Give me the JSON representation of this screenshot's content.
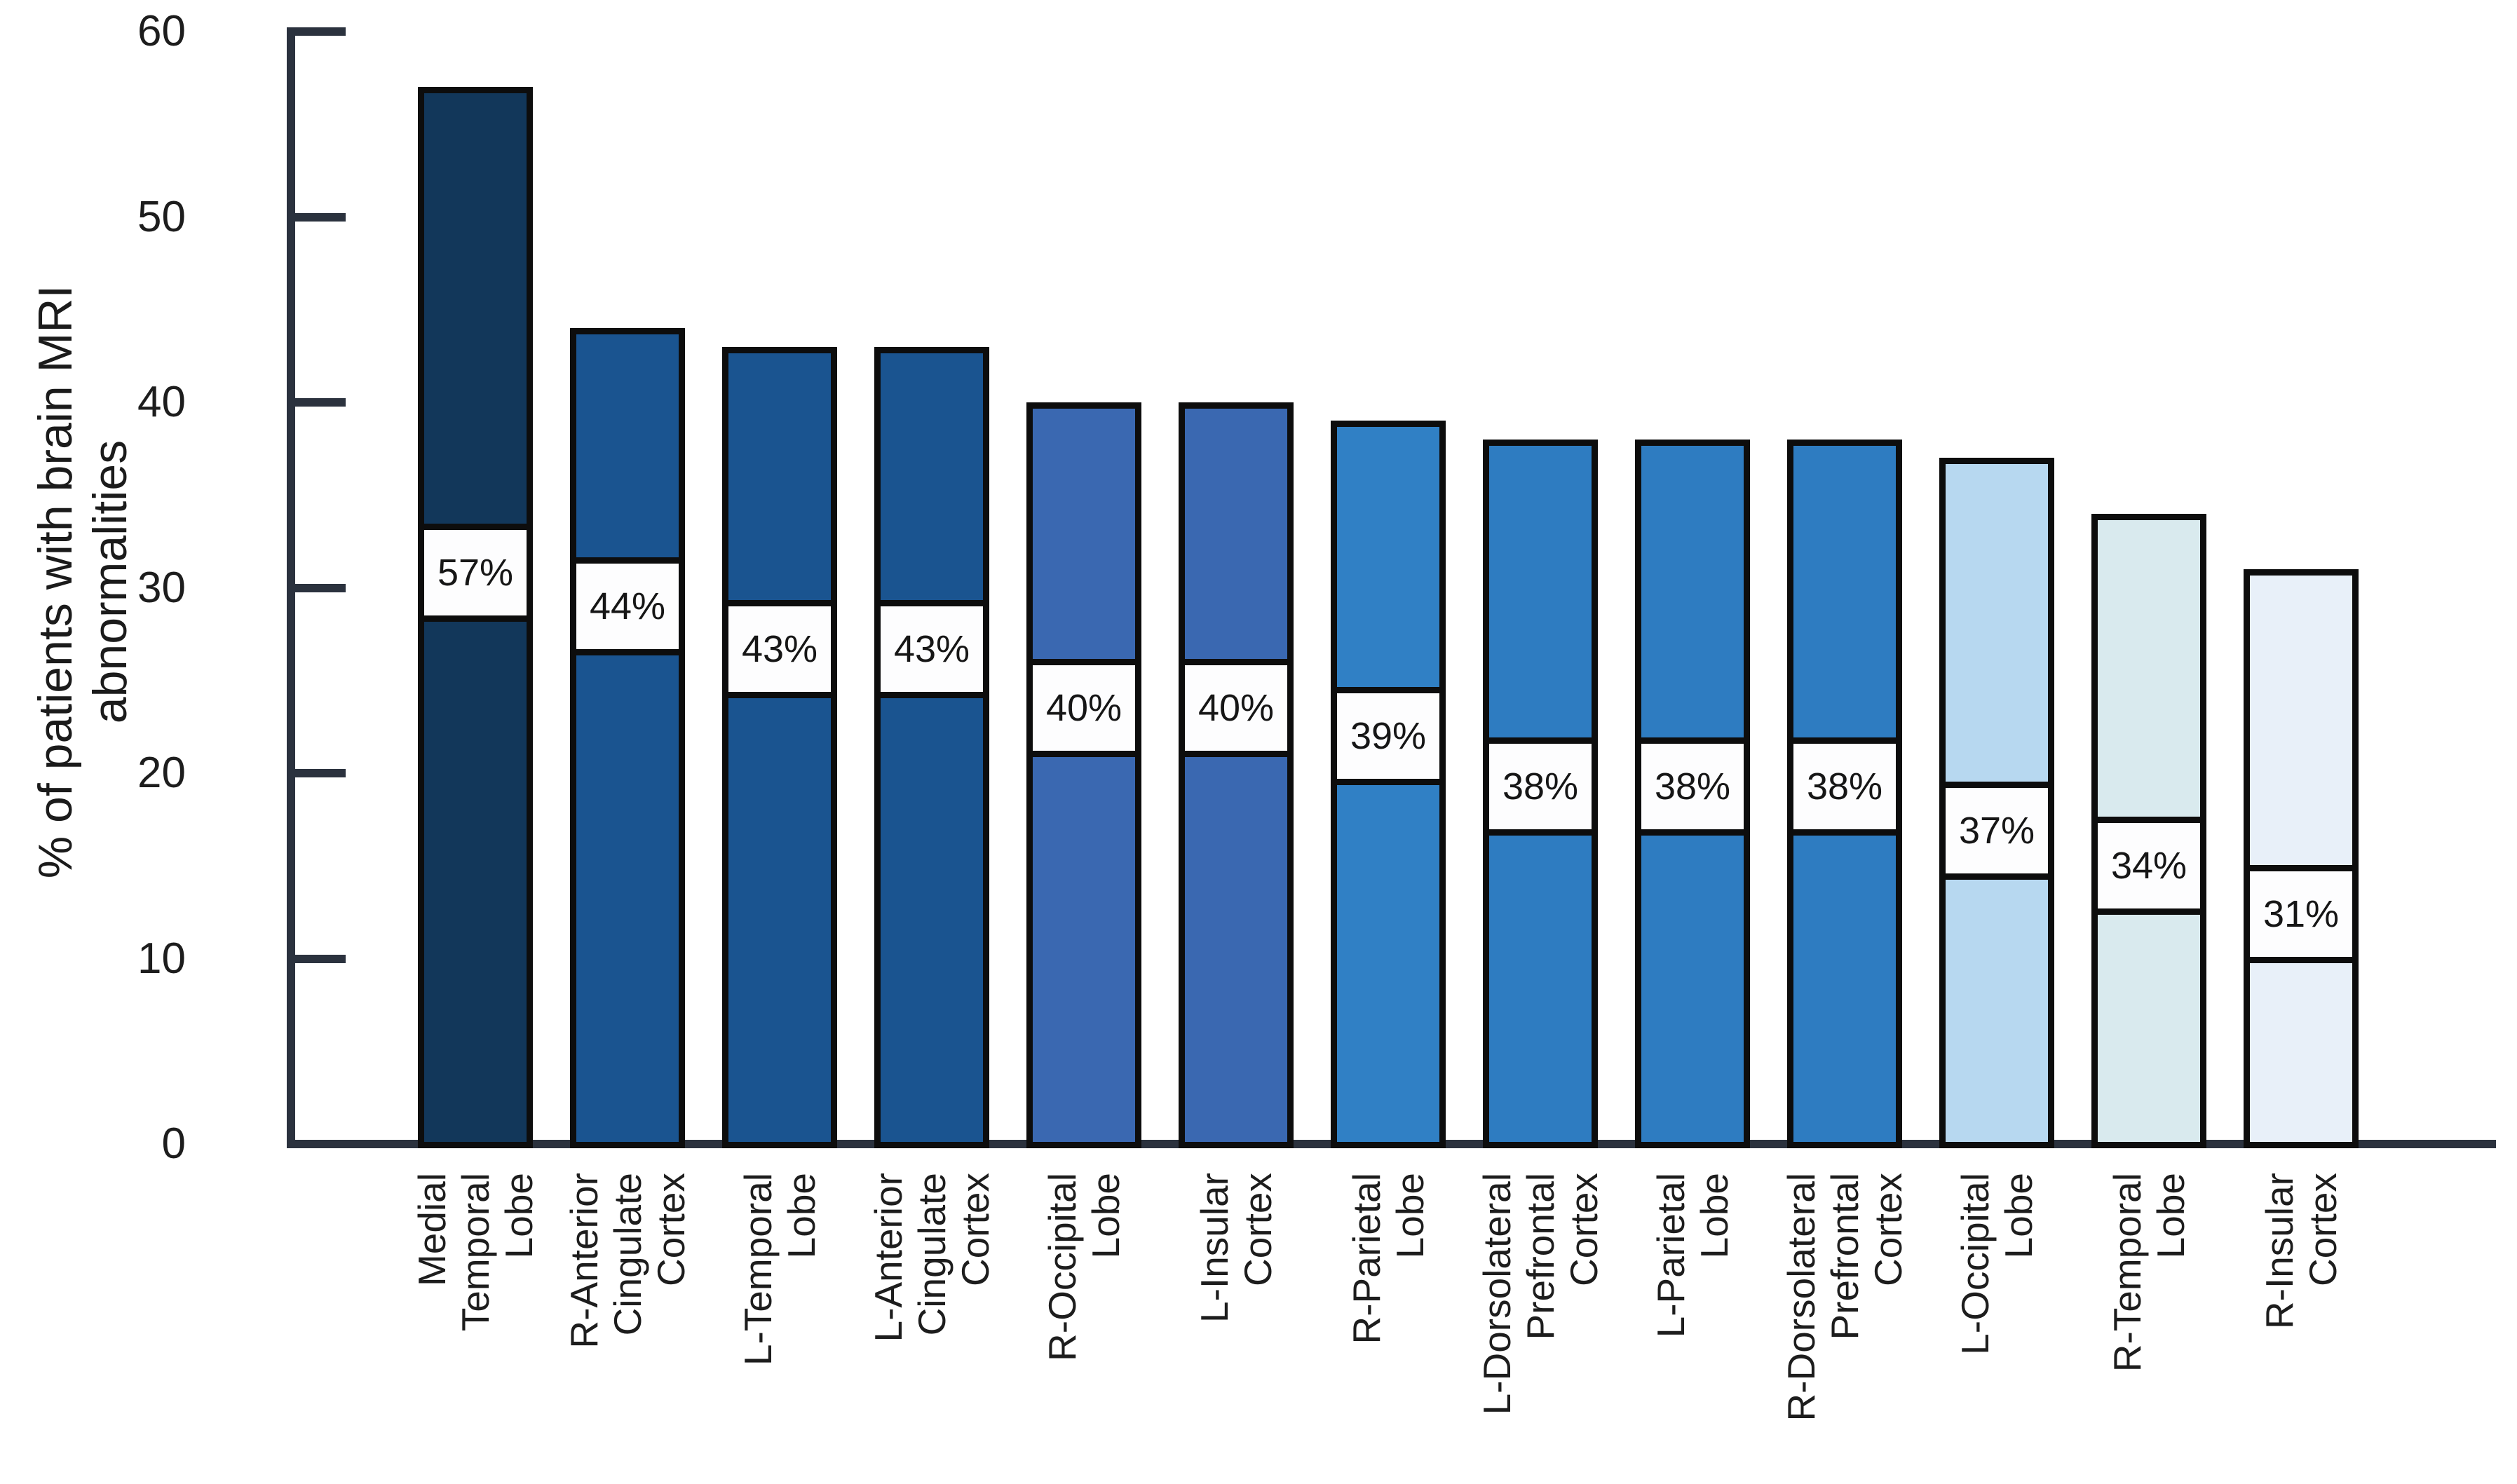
{
  "figure": {
    "background_color": "#ffffff",
    "axis_color": "#2b323e",
    "text_color": "#1d1d1d",
    "bar_border_color": "#0d0d0d",
    "label_band_bg": "#fdfdfe"
  },
  "y_axis": {
    "title_text": "% of patients with brain MRI\nabnormalities",
    "tick_labels": [
      "0",
      "10",
      "20",
      "30",
      "40",
      "50",
      "60"
    ]
  },
  "chart_data": {
    "type": "bar",
    "title": "",
    "xlabel": "",
    "ylabel": "% of patients with brain MRI abnormalities",
    "ylim": [
      0,
      60
    ],
    "yticks": [
      0,
      10,
      20,
      30,
      40,
      50,
      60
    ],
    "grid": false,
    "legend": false,
    "tick_style": "inside-right",
    "categories": [
      "Medial Temporal Lobe",
      "R-Anterior Cingulate Cortex",
      "L-Temporal Lobe",
      "L-Anterior Cingulate Cortex",
      "R-Occipital Lobe",
      "L-Insular Cortex",
      "R-Parietal Lobe",
      "L-Dorsolateral Prefrontal Cortex",
      "L-Parietal Lobe",
      "R-Dorsolateral Prefrontal Cortex",
      "L-Occipital Lobe",
      "R-Temporal Lobe",
      "R-Insular Cortex"
    ],
    "category_label_lines": [
      [
        "Medial",
        "Temporal",
        "Lobe"
      ],
      [
        "R-Anterior",
        "Cingulate",
        "Cortex"
      ],
      [
        "L-Temporal",
        "Lobe"
      ],
      [
        "L-Anterior",
        "Cingulate",
        "Cortex"
      ],
      [
        "R-Occipital",
        "Lobe"
      ],
      [
        "L-Insular",
        "Cortex"
      ],
      [
        "R-Parietal",
        "Lobe"
      ],
      [
        "L-Dorsolateral",
        "Prefrontal",
        "Cortex"
      ],
      [
        "L-Parietal",
        "Lobe"
      ],
      [
        "R-Dorsolateral",
        "Prefrontal",
        "Cortex"
      ],
      [
        "L-Occipital",
        "Lobe"
      ],
      [
        "R-Temporal",
        "Lobe"
      ],
      [
        "R-Insular",
        "Cortex"
      ]
    ],
    "values": [
      57,
      44,
      43,
      43,
      40,
      40,
      39,
      38,
      38,
      38,
      37,
      34,
      31
    ],
    "bar_value_labels": [
      "57%",
      "44%",
      "43%",
      "43%",
      "40%",
      "40%",
      "39%",
      "38%",
      "38%",
      "38%",
      "37%",
      "34%",
      "31%"
    ],
    "bar_colors": [
      "#12375a",
      "#1a5490",
      "#1a5490",
      "#1a5490",
      "#3a68b1",
      "#3a68b1",
      "#3080c5",
      "#2e7cc1",
      "#2e7cc1",
      "#2e7cc1",
      "#b7d8f0",
      "#d9eaee",
      "#e8f0f9"
    ],
    "bar_value_label_center_pct": [
      30.8,
      29.0,
      26.7,
      26.7,
      23.5,
      23.5,
      22.0,
      19.3,
      19.3,
      19.3,
      16.9,
      15.0,
      12.4
    ]
  }
}
